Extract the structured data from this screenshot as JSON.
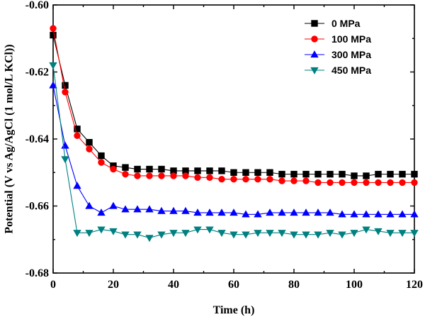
{
  "chart_data": {
    "type": "line",
    "xlabel": "Time (h)",
    "ylabel": "Potential (V vs Ag/AgCl (1 mol/L KCl))",
    "xlim": [
      0,
      120
    ],
    "ylim": [
      -0.68,
      -0.6
    ],
    "x_ticks": [
      "0",
      "20",
      "40",
      "60",
      "80",
      "100",
      "120"
    ],
    "y_ticks": [
      "-0.60",
      "-0.62",
      "-0.64",
      "-0.66",
      "-0.68"
    ],
    "legend_position": "top-right",
    "series": [
      {
        "name": "0 MPa",
        "color": "#000000",
        "marker": "square",
        "x": [
          0,
          4,
          8,
          12,
          16,
          20,
          24,
          28,
          32,
          36,
          40,
          44,
          48,
          52,
          56,
          60,
          64,
          68,
          72,
          76,
          80,
          84,
          88,
          92,
          96,
          100,
          104,
          108,
          112,
          116,
          120
        ],
        "y": [
          -0.609,
          -0.624,
          -0.637,
          -0.641,
          -0.645,
          -0.648,
          -0.6485,
          -0.649,
          -0.649,
          -0.649,
          -0.6495,
          -0.6495,
          -0.6495,
          -0.6495,
          -0.6495,
          -0.65,
          -0.65,
          -0.65,
          -0.65,
          -0.6505,
          -0.6505,
          -0.6505,
          -0.6505,
          -0.6505,
          -0.6505,
          -0.651,
          -0.651,
          -0.6505,
          -0.6505,
          -0.6505,
          -0.6505
        ]
      },
      {
        "name": "100 MPa",
        "color": "#ff0000",
        "marker": "circle",
        "x": [
          0,
          4,
          8,
          12,
          16,
          20,
          24,
          28,
          32,
          36,
          40,
          44,
          48,
          52,
          56,
          60,
          64,
          68,
          72,
          76,
          80,
          84,
          88,
          92,
          96,
          100,
          104,
          108,
          112,
          116,
          120
        ],
        "y": [
          -0.607,
          -0.626,
          -0.639,
          -0.643,
          -0.647,
          -0.649,
          -0.6505,
          -0.651,
          -0.651,
          -0.651,
          -0.651,
          -0.651,
          -0.6515,
          -0.6515,
          -0.652,
          -0.652,
          -0.652,
          -0.652,
          -0.652,
          -0.6525,
          -0.6525,
          -0.6525,
          -0.653,
          -0.653,
          -0.653,
          -0.653,
          -0.653,
          -0.653,
          -0.653,
          -0.653,
          -0.653
        ]
      },
      {
        "name": "300 MPa",
        "color": "#0000ff",
        "marker": "triangle-up",
        "x": [
          0,
          4,
          8,
          12,
          16,
          20,
          24,
          28,
          32,
          36,
          40,
          44,
          48,
          52,
          56,
          60,
          64,
          68,
          72,
          76,
          80,
          84,
          88,
          92,
          96,
          100,
          104,
          108,
          112,
          116,
          120
        ],
        "y": [
          -0.624,
          -0.642,
          -0.654,
          -0.66,
          -0.662,
          -0.66,
          -0.661,
          -0.661,
          -0.661,
          -0.6615,
          -0.6615,
          -0.6615,
          -0.662,
          -0.662,
          -0.662,
          -0.662,
          -0.6625,
          -0.6625,
          -0.662,
          -0.662,
          -0.662,
          -0.662,
          -0.662,
          -0.662,
          -0.6625,
          -0.6625,
          -0.6625,
          -0.6625,
          -0.6625,
          -0.6625,
          -0.6625
        ]
      },
      {
        "name": "450 MPa",
        "color": "#008080",
        "marker": "triangle-down",
        "x": [
          0,
          4,
          8,
          12,
          16,
          20,
          24,
          28,
          32,
          36,
          40,
          44,
          48,
          52,
          56,
          60,
          64,
          68,
          72,
          76,
          80,
          84,
          88,
          92,
          96,
          100,
          104,
          108,
          112,
          116,
          120
        ],
        "y": [
          -0.618,
          -0.646,
          -0.668,
          -0.668,
          -0.667,
          -0.6675,
          -0.6685,
          -0.6685,
          -0.6695,
          -0.6685,
          -0.668,
          -0.668,
          -0.667,
          -0.667,
          -0.668,
          -0.6685,
          -0.6685,
          -0.668,
          -0.668,
          -0.668,
          -0.6685,
          -0.6685,
          -0.6685,
          -0.668,
          -0.6685,
          -0.668,
          -0.667,
          -0.6675,
          -0.668,
          -0.668,
          -0.668
        ]
      }
    ]
  }
}
